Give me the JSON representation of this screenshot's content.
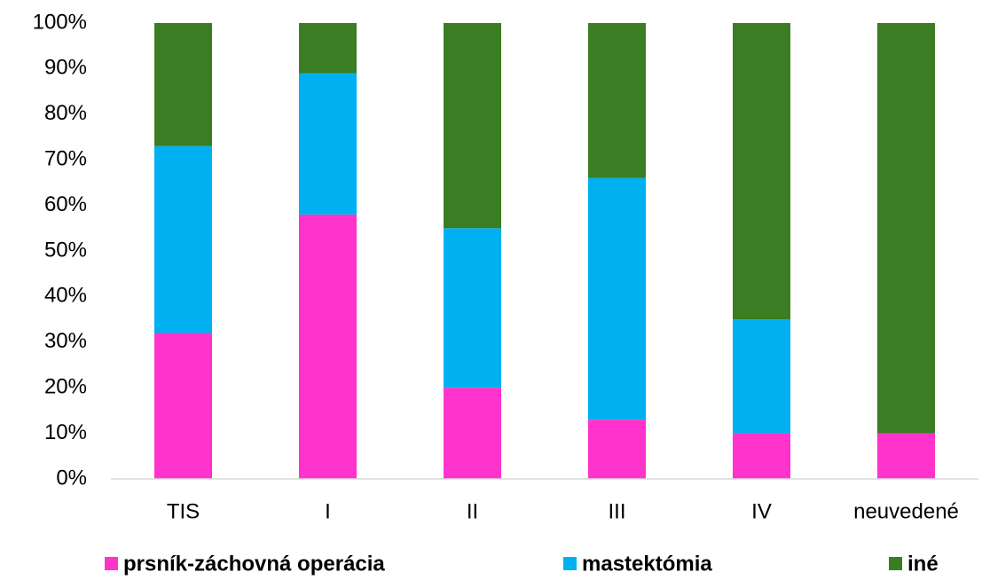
{
  "chart_data": {
    "type": "stacked_bar",
    "categories": [
      "TIS",
      "I",
      "II",
      "III",
      "IV",
      "neuvedené"
    ],
    "series": [
      {
        "name": "prsník-záchovná operácia",
        "color": "#ff33cc",
        "values": [
          32,
          58,
          20,
          13,
          10,
          10
        ]
      },
      {
        "name": "mastektómia",
        "color": "#00b0f0",
        "values": [
          41,
          31,
          35,
          53,
          25,
          0
        ]
      },
      {
        "name": "iné",
        "color": "#3a7d22",
        "values": [
          27,
          11,
          45,
          34,
          65,
          90
        ]
      }
    ],
    "ylim": [
      0,
      100
    ],
    "yticks": [
      {
        "value": 0,
        "label": "0%"
      },
      {
        "value": 10,
        "label": "10%"
      },
      {
        "value": 20,
        "label": "20%"
      },
      {
        "value": 30,
        "label": "30%"
      },
      {
        "value": 40,
        "label": "40%"
      },
      {
        "value": 50,
        "label": "50%"
      },
      {
        "value": 60,
        "label": "60%"
      },
      {
        "value": 70,
        "label": "70%"
      },
      {
        "value": 80,
        "label": "80%"
      },
      {
        "value": 90,
        "label": "90%"
      },
      {
        "value": 100,
        "label": "100%"
      }
    ],
    "grid": false,
    "legend": "bottom"
  }
}
